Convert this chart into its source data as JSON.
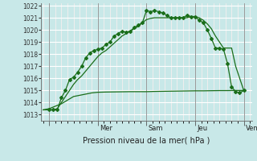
{
  "bg_color": "#c8e8e8",
  "grid_major_color": "#ffffff",
  "grid_minor_color": "#e8cccc",
  "line_color": "#1a6e1a",
  "ylim": [
    1012.5,
    1022.2
  ],
  "yticks": [
    1013,
    1014,
    1015,
    1016,
    1017,
    1018,
    1019,
    1020,
    1021,
    1022
  ],
  "xlabel": "Pression niveau de la mer( hPa )",
  "xlim": [
    -8,
    200
  ],
  "day_positions": [
    0,
    48,
    96,
    144,
    192
  ],
  "day_labels": [
    "Mer",
    "Sam",
    "Jeu",
    "Ven"
  ],
  "line1_x": [
    0,
    4,
    8,
    12,
    16,
    20,
    24,
    28,
    32,
    36,
    40,
    44,
    48,
    52,
    56,
    60,
    64,
    68,
    72,
    76,
    80,
    84,
    88,
    92,
    96,
    100,
    104,
    108,
    112,
    116,
    120,
    124,
    128,
    132,
    136,
    140,
    144,
    148,
    152,
    156,
    160,
    164,
    168,
    172,
    176,
    180,
    184,
    188,
    192
  ],
  "line1_y": [
    1013.4,
    1013.4,
    1013.4,
    1014.4,
    1015.0,
    1015.9,
    1016.1,
    1016.5,
    1017.0,
    1017.7,
    1018.1,
    1018.3,
    1018.4,
    1018.5,
    1018.8,
    1019.0,
    1019.5,
    1019.7,
    1019.9,
    1019.8,
    1019.9,
    1020.2,
    1020.4,
    1020.6,
    1021.6,
    1021.5,
    1021.6,
    1021.5,
    1021.4,
    1021.2,
    1021.0,
    1021.0,
    1021.0,
    1021.0,
    1021.2,
    1021.1,
    1021.1,
    1020.8,
    1020.6,
    1020.0,
    1019.3,
    1018.5,
    1018.5,
    1018.4,
    1017.2,
    1015.3,
    1014.9,
    1014.8,
    1015.0
  ],
  "line2_x": [
    -6,
    0,
    6,
    12,
    18,
    24,
    30,
    36,
    42,
    48,
    56,
    64,
    72,
    80,
    88,
    96,
    104,
    112,
    120,
    128,
    136,
    144,
    152,
    160,
    168,
    176,
    184,
    192
  ],
  "line2_y": [
    1013.4,
    1013.5,
    1013.7,
    1013.9,
    1014.2,
    1014.5,
    1014.6,
    1014.7,
    1014.8,
    1014.85,
    1014.87,
    1014.88,
    1014.89,
    1014.9,
    1014.9,
    1014.9,
    1014.92,
    1014.93,
    1014.94,
    1014.95,
    1014.96,
    1014.97,
    1014.97,
    1014.98,
    1014.99,
    1014.99,
    1015.0,
    1015.0
  ],
  "line3_x": [
    -6,
    0,
    4,
    8,
    12,
    16,
    20,
    24,
    28,
    32,
    36,
    40,
    44,
    48,
    52,
    56,
    60,
    64,
    68,
    72,
    76,
    80,
    84,
    88,
    92,
    96,
    100,
    104,
    108,
    112,
    116,
    120,
    124,
    128,
    132,
    136,
    140,
    144,
    148,
    152,
    156,
    160,
    164,
    168,
    172,
    176,
    180,
    184,
    188,
    192
  ],
  "line3_y": [
    1013.4,
    1013.4,
    1013.4,
    1013.5,
    1014.0,
    1014.5,
    1015.0,
    1015.5,
    1015.9,
    1016.2,
    1016.6,
    1017.0,
    1017.4,
    1017.8,
    1018.1,
    1018.3,
    1018.6,
    1018.9,
    1019.2,
    1019.5,
    1019.7,
    1019.9,
    1020.1,
    1020.3,
    1020.6,
    1020.85,
    1020.95,
    1021.0,
    1021.0,
    1021.0,
    1021.0,
    1021.0,
    1021.0,
    1021.0,
    1021.0,
    1021.0,
    1021.1,
    1021.1,
    1021.0,
    1020.8,
    1020.5,
    1020.1,
    1019.5,
    1019.0,
    1018.5,
    1018.5,
    1018.5,
    1017.0,
    1016.0,
    1015.0
  ]
}
